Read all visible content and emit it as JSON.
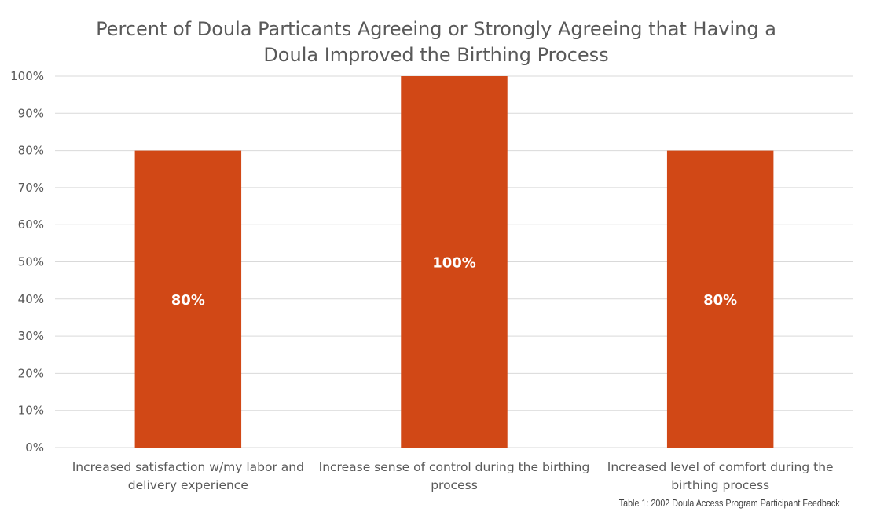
{
  "chart_data": {
    "type": "bar",
    "title_lines": [
      "Percent of Doula Particants Agreeing or Strongly Agreeing that Having a",
      "Doula Improved the Birthing Process"
    ],
    "categories": [
      [
        "Increased satisfaction w/my labor and",
        "delivery experience"
      ],
      [
        "Increase sense of control during the birthing",
        "process"
      ],
      [
        "Increased level of comfort during the",
        "birthing process"
      ]
    ],
    "values": [
      80,
      100,
      80
    ],
    "data_labels": [
      "80%",
      "100%",
      "80%"
    ],
    "y_ticks": [
      "0%",
      "10%",
      "20%",
      "30%",
      "40%",
      "50%",
      "60%",
      "70%",
      "80%",
      "90%",
      "100%"
    ],
    "ylim": [
      0,
      100
    ],
    "grid": true,
    "legend": "none",
    "bar_color": "#d14816"
  },
  "caption": "Table 1: 2002 Doula Access Program Participant Feedback"
}
